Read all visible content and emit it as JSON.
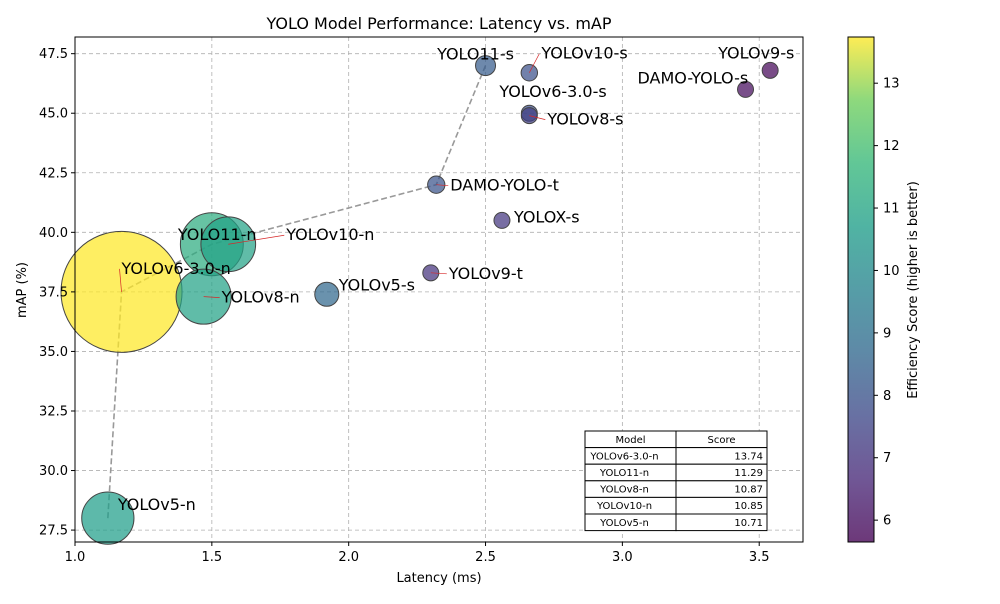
{
  "chart_data": {
    "type": "scatter",
    "title": "YOLO Model Performance: Latency vs. mAP",
    "xlabel": "Latency (ms)",
    "ylabel": "mAP (%)",
    "xlim": [
      1.0,
      3.66
    ],
    "ylim": [
      27.0,
      48.2
    ],
    "xticks": [
      1.0,
      1.5,
      2.0,
      2.5,
      3.0,
      3.5
    ],
    "xtick_labels": [
      "1.0",
      "1.5",
      "2.0",
      "2.5",
      "3.0",
      "3.5"
    ],
    "yticks": [
      27.5,
      30.0,
      32.5,
      35.0,
      37.5,
      40.0,
      42.5,
      45.0,
      47.5
    ],
    "ytick_labels": [
      "27.5",
      "30.0",
      "32.5",
      "35.0",
      "37.5",
      "40.0",
      "42.5",
      "45.0",
      "47.5"
    ],
    "grid": true,
    "colorbar": {
      "label": "Efficiency Score (higher is better)",
      "min": 5.65,
      "max": 13.74,
      "ticks": [
        6,
        7,
        8,
        9,
        10,
        11,
        12,
        13
      ],
      "tick_labels": [
        "6",
        "7",
        "8",
        "9",
        "10",
        "11",
        "12",
        "13"
      ],
      "colormap": "viridis"
    },
    "points": [
      {
        "name": "YOLOv5-n",
        "x": 1.12,
        "y": 28.0,
        "score": 10.71
      },
      {
        "name": "YOLOv6-3.0-n",
        "x": 1.17,
        "y": 37.5,
        "score": 13.74
      },
      {
        "name": "YOLOv8-n",
        "x": 1.47,
        "y": 37.3,
        "score": 10.87
      },
      {
        "name": "YOLO11-n",
        "x": 1.5,
        "y": 39.5,
        "score": 11.29
      },
      {
        "name": "YOLOv10-n",
        "x": 1.56,
        "y": 39.5,
        "score": 10.85
      },
      {
        "name": "YOLOv5-s",
        "x": 1.92,
        "y": 37.4,
        "score": 8.7
      },
      {
        "name": "YOLOv9-t",
        "x": 2.3,
        "y": 38.3,
        "score": 7.0
      },
      {
        "name": "DAMO-YOLO-t",
        "x": 2.32,
        "y": 42.0,
        "score": 8.0
      },
      {
        "name": "YOLOX-s",
        "x": 2.56,
        "y": 40.5,
        "score": 7.1
      },
      {
        "name": "YOLO11-s",
        "x": 2.5,
        "y": 47.0,
        "score": 8.3
      },
      {
        "name": "YOLOv10-s",
        "x": 2.66,
        "y": 46.7,
        "score": 7.9
      },
      {
        "name": "YOLOv6-3.0-s",
        "x": 2.66,
        "y": 45.0,
        "score": 7.8
      },
      {
        "name": "YOLOv8-s",
        "x": 2.66,
        "y": 44.9,
        "score": 7.4
      },
      {
        "name": "DAMO-YOLO-s",
        "x": 3.45,
        "y": 46.0,
        "score": 5.9
      },
      {
        "name": "YOLOv9-s",
        "x": 3.54,
        "y": 46.8,
        "score": 5.8
      }
    ],
    "pareto_front": [
      {
        "x": 1.12,
        "y": 28.0
      },
      {
        "x": 1.17,
        "y": 37.5
      },
      {
        "x": 1.5,
        "y": 39.5
      },
      {
        "x": 2.32,
        "y": 42.0
      },
      {
        "x": 2.5,
        "y": 47.0
      }
    ],
    "table": {
      "headers": [
        "Model",
        "Score"
      ],
      "rows": [
        [
          "YOLOv6-3.0-n",
          "13.74"
        ],
        [
          "YOLO11-n",
          "11.29"
        ],
        [
          "YOLOv8-n",
          "10.87"
        ],
        [
          "YOLOv10-n",
          "10.85"
        ],
        [
          "YOLOv5-n",
          "10.71"
        ]
      ]
    }
  }
}
